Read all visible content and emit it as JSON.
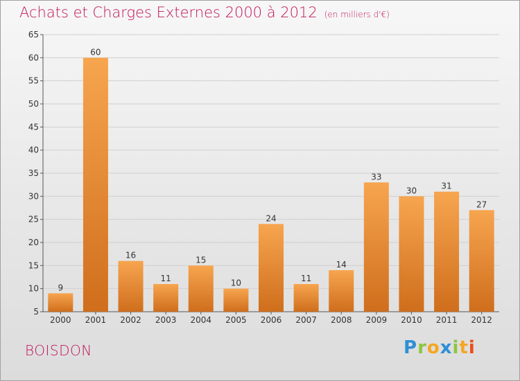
{
  "header": {
    "title": "Achats et Charges Externes 2000 à 2012",
    "subtitle": "(en milliers d'€)"
  },
  "footer": {
    "commune": "BOISDON",
    "logo_text": "Proxiti",
    "logo_letters": [
      {
        "char": "P",
        "color": "#2e8fd6"
      },
      {
        "char": "r",
        "color": "#8cc63f"
      },
      {
        "char": "o",
        "color": "#f5a623"
      },
      {
        "char": "x",
        "color": "#2e8fd6"
      },
      {
        "char": "i",
        "color": "#8cc63f"
      },
      {
        "char": "t",
        "color": "#f5a623"
      },
      {
        "char": "i",
        "color": "#e94e1b"
      }
    ]
  },
  "colors": {
    "bar_top": "#f7a54f",
    "bar_bottom": "#cf6e1c",
    "title": "#c0155a",
    "grid": "#d0d0d0",
    "axis_text": "#333333"
  },
  "chart_data": {
    "type": "bar",
    "title": "Achats et Charges Externes 2000 à 2012",
    "subtitle": "(en milliers d'€)",
    "categories": [
      "2000",
      "2001",
      "2002",
      "2003",
      "2004",
      "2005",
      "2006",
      "2007",
      "2008",
      "2009",
      "2010",
      "2011",
      "2012"
    ],
    "values": [
      9,
      60,
      16,
      11,
      15,
      10,
      24,
      11,
      14,
      33,
      30,
      31,
      27
    ],
    "ylim": [
      5,
      65
    ],
    "yticks": [
      5,
      10,
      15,
      20,
      25,
      30,
      35,
      40,
      45,
      50,
      55,
      60,
      65
    ],
    "grid": true,
    "xlabel": "",
    "ylabel": ""
  }
}
